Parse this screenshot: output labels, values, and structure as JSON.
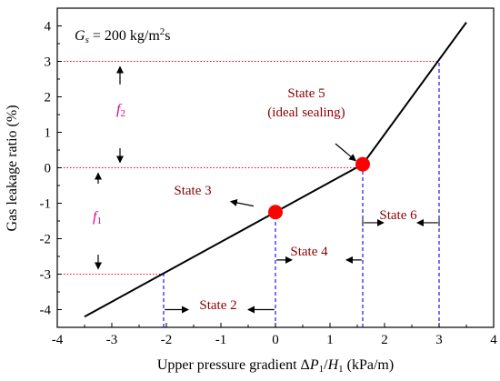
{
  "chart_data": {
    "type": "line",
    "xlabel": "Upper pressure gradient ΔP1/H1 (kPa/m)",
    "xlabel_parts": {
      "a": "Upper pressure gradient Δ",
      "b": "P",
      "c": "1",
      "d": "/",
      "e": "H",
      "f": "1",
      "g": " (kPa/m)"
    },
    "ylabel": "Gas leakage ratio (%)",
    "xlim": [
      -4,
      4
    ],
    "ylim": [
      -4.5,
      4.5
    ],
    "xticks": [
      -4,
      -3,
      -2,
      -1,
      0,
      1,
      2,
      3,
      4
    ],
    "yticks": [
      -4,
      -3,
      -2,
      -1,
      0,
      1,
      2,
      3,
      4
    ],
    "x_tick_labels": [
      "-4",
      "-3",
      "-2",
      "-1",
      "0",
      "1",
      "2",
      "3",
      "4"
    ],
    "y_tick_labels": [
      "-4",
      "-3",
      "-2",
      "-1",
      "0",
      "1",
      "2",
      "3",
      "4"
    ],
    "series": [
      {
        "x": [
          -3.5,
          1.6,
          3.5
        ],
        "y": [
          -4.2,
          0.1,
          4.1
        ],
        "color": "#000000"
      }
    ],
    "highlight_points": [
      {
        "x": 0.0,
        "y": -1.25,
        "color": "#ff0000"
      },
      {
        "x": 1.6,
        "y": 0.1,
        "color": "#ff0000"
      }
    ],
    "reference_lines": {
      "horizontal_red_dotted_y": [
        3,
        0,
        -3
      ],
      "vertical_blue_dashed_x": [
        -2.05,
        0.0,
        1.6,
        3.0
      ]
    },
    "annotations": {
      "gs_prefix": "G",
      "gs_sub": "s",
      "gs_value": " = 200 kg/m",
      "gs_sup": "2",
      "gs_unit": "s",
      "f2_main": "f",
      "f2_sub": "2",
      "f1_main": "f",
      "f1_sub": "1",
      "state5_line1": "State 5",
      "state5_line2": "(ideal sealing)",
      "state3": "State 3",
      "state6": "State 6",
      "state4": "State 4",
      "state2": "State 2"
    },
    "grid": false
  }
}
